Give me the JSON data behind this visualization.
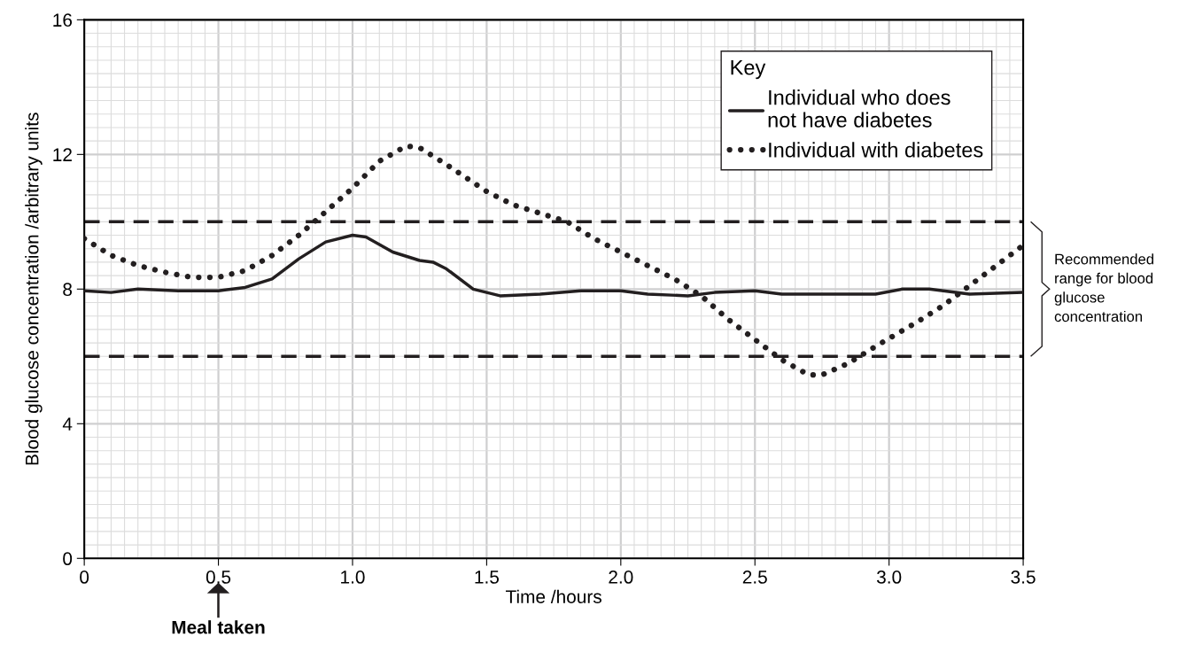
{
  "chart_data": {
    "type": "line",
    "xlabel": "Time /hours",
    "ylabel": "Blood glucose concentration /arbitrary units",
    "legend_title": "Key",
    "legend": "top right",
    "grid": true,
    "xlim": [
      0,
      3.5
    ],
    "ylim": [
      0,
      16
    ],
    "xticks": [
      0,
      0.5,
      {
        "value": 1,
        "label": "1.0"
      },
      1.5,
      {
        "value": 2,
        "label": "2.0"
      },
      2.5,
      {
        "value": 3,
        "label": "3.0"
      },
      3.5
    ],
    "yticks": [
      0,
      4,
      8,
      12,
      16
    ],
    "series": [
      {
        "name": "Individual who does not have diabetes",
        "color": "#231f20",
        "line_style": "solid",
        "x": [
          0,
          0.1,
          0.2,
          0.35,
          0.5,
          0.6,
          0.7,
          0.8,
          0.9,
          1.0,
          1.05,
          1.15,
          1.25,
          1.3,
          1.35,
          1.45,
          1.55,
          1.7,
          1.85,
          2.0,
          2.1,
          2.25,
          2.35,
          2.5,
          2.6,
          2.8,
          2.95,
          3.05,
          3.15,
          3.3,
          3.5
        ],
        "values": [
          7.95,
          7.9,
          8.0,
          7.95,
          7.95,
          8.05,
          8.3,
          8.9,
          9.4,
          9.6,
          9.55,
          9.1,
          8.85,
          8.8,
          8.6,
          8.0,
          7.8,
          7.85,
          7.95,
          7.95,
          7.85,
          7.8,
          7.9,
          7.95,
          7.85,
          7.85,
          7.85,
          8.0,
          8.0,
          7.85,
          7.9
        ]
      },
      {
        "name": "Individual with diabetes",
        "color": "#231f20",
        "line_style": "dotted",
        "x": [
          0,
          0.1,
          0.2,
          0.3,
          0.4,
          0.5,
          0.6,
          0.7,
          0.8,
          0.9,
          1.0,
          1.1,
          1.2,
          1.25,
          1.35,
          1.5,
          1.6,
          1.8,
          1.9,
          2.0,
          2.1,
          2.2,
          2.3,
          2.4,
          2.5,
          2.6,
          2.7,
          2.75,
          2.85,
          2.95,
          3.1,
          3.2,
          3.3,
          3.4,
          3.5
        ],
        "values": [
          9.5,
          9.0,
          8.7,
          8.5,
          8.35,
          8.35,
          8.55,
          9.0,
          9.6,
          10.3,
          11.0,
          11.8,
          12.25,
          12.2,
          11.7,
          10.9,
          10.5,
          10.0,
          9.5,
          9.1,
          8.7,
          8.3,
          7.8,
          7.1,
          6.5,
          5.9,
          5.45,
          5.45,
          5.8,
          6.3,
          7.0,
          7.5,
          8.1,
          8.7,
          9.3
        ]
      }
    ],
    "ref_lines": [
      {
        "axis": "y",
        "value": 10,
        "line_style": "dashed",
        "color": "#231f20"
      },
      {
        "axis": "y",
        "value": 6,
        "line_style": "dashed",
        "color": "#231f20"
      }
    ],
    "annotations": [
      "Meal taken",
      "Recommended range for blood glucose concentration"
    ]
  }
}
